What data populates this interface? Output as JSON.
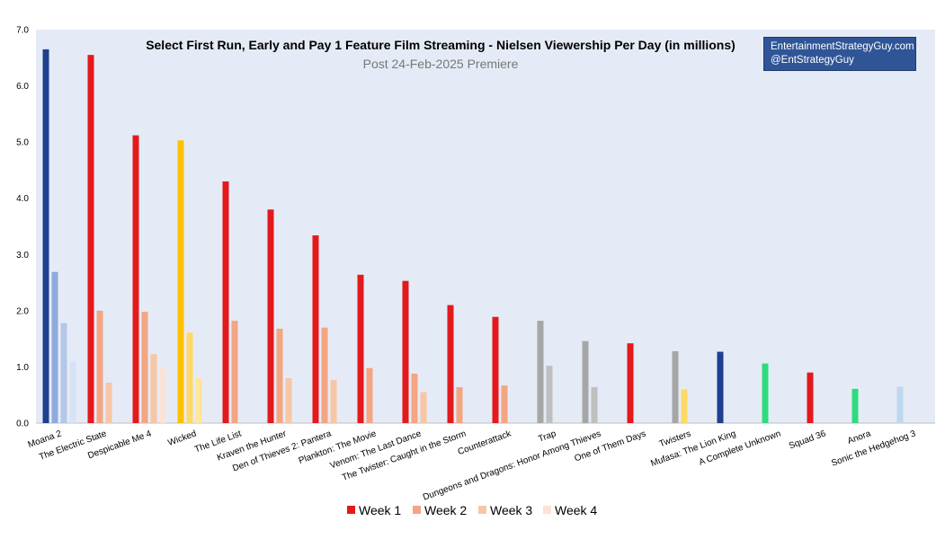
{
  "chart_data": {
    "type": "bar",
    "title": "Select First Run, Early and Pay 1 Feature Film Streaming - Nielsen Viewership Per Day (in millions)",
    "subtitle": "Post 24-Feb-2025 Premiere",
    "credit": [
      "EntertainmentStrategyGuy.com",
      "@EntStrategyGuy"
    ],
    "ylim": [
      0,
      7
    ],
    "yticks": [
      "0.0",
      "1.0",
      "2.0",
      "3.0",
      "4.0",
      "5.0",
      "6.0",
      "7.0"
    ],
    "grid": false,
    "legend_position": "bottom",
    "categories": [
      "Moana 2",
      "The Electric State",
      "Despicable Me 4",
      "Wicked",
      "The Life List",
      "Kraven the Hunter",
      "Den of Thieves 2: Pantera",
      "Plankton: The Movie",
      "Venom: The Last Dance",
      "The Twister: Caught in the Storm",
      "Counterattack",
      "Trap",
      "Dungeons and Dragons: Honor Among Thieves",
      "One of Them Days",
      "Twisters",
      "Mufasa: The Lion King",
      "A Complete Unknown",
      "Squad 36",
      "Anora",
      "Sonic the Hedgehog 3"
    ],
    "series": [
      {
        "name": "Week 1",
        "color": "#E31A1C",
        "values": [
          6.65,
          6.55,
          5.12,
          5.03,
          4.3,
          3.8,
          3.34,
          2.64,
          2.53,
          2.1,
          1.89,
          1.82,
          1.46,
          1.42,
          1.28,
          1.27,
          1.06,
          0.9,
          0.61,
          0.65
        ]
      },
      {
        "name": "Week 2",
        "color": "#F4A582",
        "values": [
          2.69,
          2.0,
          1.98,
          1.61,
          1.82,
          1.68,
          1.7,
          0.98,
          0.88,
          0.64,
          0.67,
          1.02,
          0.64,
          null,
          0.6,
          null,
          null,
          null,
          null,
          null
        ]
      },
      {
        "name": "Week 3",
        "color": "#F7C6A5",
        "values": [
          1.78,
          0.72,
          1.23,
          0.8,
          null,
          0.8,
          0.77,
          null,
          0.55,
          null,
          null,
          null,
          null,
          null,
          null,
          null,
          null,
          null,
          null,
          null
        ]
      },
      {
        "name": "Week 4",
        "color": "#FBE3D6",
        "values": [
          1.09,
          null,
          0.97,
          null,
          null,
          null,
          null,
          null,
          null,
          null,
          null,
          null,
          null,
          null,
          null,
          null,
          null,
          null,
          null,
          null
        ]
      }
    ],
    "bar_colors": [
      [
        "#1F3F8F",
        "#8FAADC",
        "#B4C7E7",
        "#D6E2F5"
      ],
      [
        "#E31A1C",
        "#F4A582",
        "#F7C6A5",
        "#FBE3D6"
      ],
      [
        "#E31A1C",
        "#F4A582",
        "#F7C6A5",
        "#FBE3D6"
      ],
      [
        "#FFC000",
        "#FFD966",
        "#FFE699",
        "#FFF2CC"
      ],
      [
        "#E31A1C",
        "#F4A582",
        "#F7C6A5",
        "#FBE3D6"
      ],
      [
        "#E31A1C",
        "#F4A582",
        "#F7C6A5",
        "#FBE3D6"
      ],
      [
        "#E31A1C",
        "#F4A582",
        "#F7C6A5",
        "#FBE3D6"
      ],
      [
        "#E31A1C",
        "#F4A582",
        "#F7C6A5",
        "#FBE3D6"
      ],
      [
        "#E31A1C",
        "#F4A582",
        "#F7C6A5",
        "#FBE3D6"
      ],
      [
        "#E31A1C",
        "#F4A582",
        "#F7C6A5",
        "#FBE3D6"
      ],
      [
        "#E31A1C",
        "#F4A582",
        "#F7C6A5",
        "#FBE3D6"
      ],
      [
        "#A6A6A6",
        "#BFBFBF",
        "#D9D9D9",
        "#EDEDED"
      ],
      [
        "#A6A6A6",
        "#BFBFBF",
        "#D9D9D9",
        "#EDEDED"
      ],
      [
        "#E31A1C",
        "#F4A582",
        "#F7C6A5",
        "#FBE3D6"
      ],
      [
        "#A6A6A6",
        "#FFD966",
        "#FFE699",
        "#FFF2CC"
      ],
      [
        "#1F3F8F",
        "#8FAADC",
        "#B4C7E7",
        "#D6E2F5"
      ],
      [
        "#2EDB7E",
        "#8FE9B8",
        "#BFF3D6",
        "#E2FAEC"
      ],
      [
        "#E31A1C",
        "#F4A582",
        "#F7C6A5",
        "#FBE3D6"
      ],
      [
        "#2EDB7E",
        "#8FE9B8",
        "#BFF3D6",
        "#E2FAEC"
      ],
      [
        "#BDD7EE",
        "#D6E6F5",
        "#E6EFF9",
        "#F2F7FC"
      ]
    ],
    "plot_background": "#E5EBF6"
  }
}
